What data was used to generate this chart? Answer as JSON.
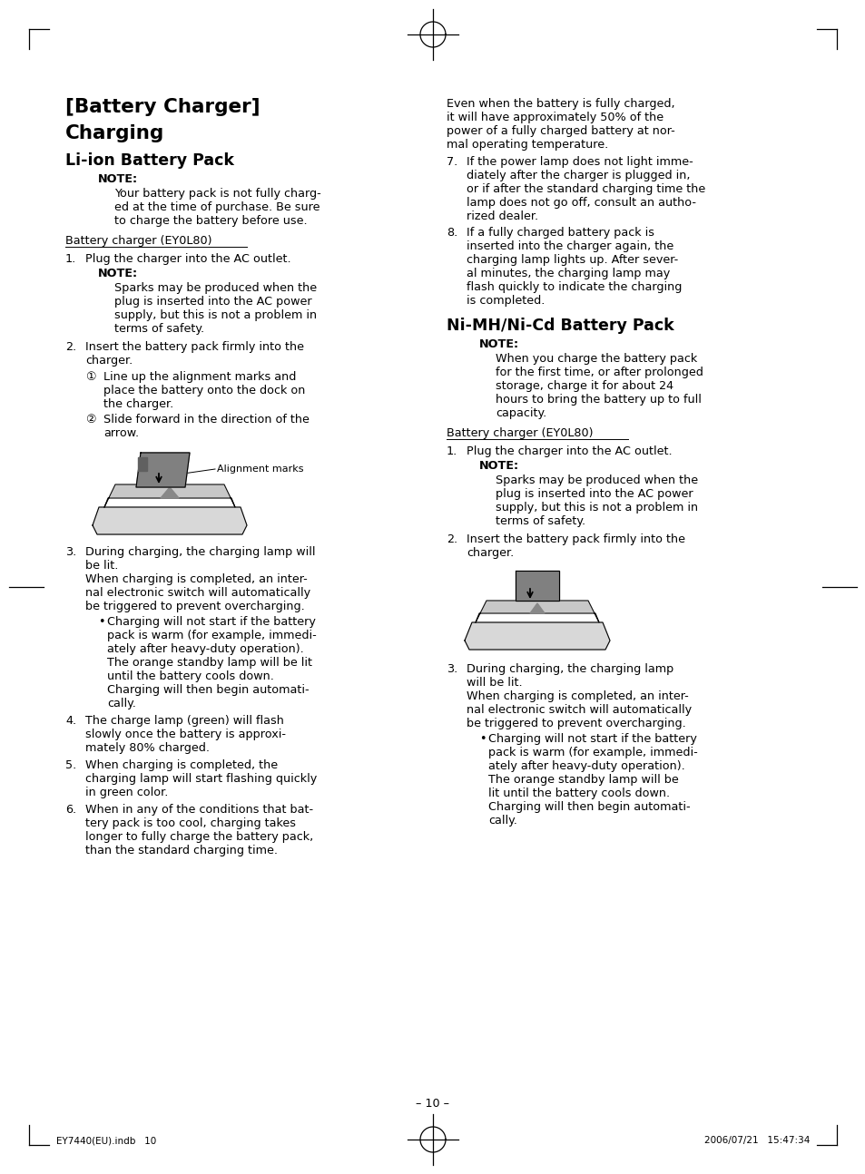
{
  "page_number": "– 10 –",
  "footer_left": "EY7440(EU).indb   10",
  "footer_right": "2006/07/21   15:47:34",
  "background": "#ffffff",
  "left_col": {
    "title1": "[Battery Charger]",
    "title2": "Charging",
    "subtitle1": "Li-ion Battery Pack",
    "note_header1": "NOTE:",
    "note_body1": [
      "Your battery pack is not fully charg-",
      "ed at the time of purchase. Be sure",
      "to charge the battery before use."
    ],
    "underline_label1": "Battery charger (EY0L80)",
    "item1_num": "1.",
    "item1_text": "Plug the charger into the AC outlet.",
    "item1_note_hdr": "NOTE:",
    "item1_note": [
      "Sparks may be produced when the",
      "plug is inserted into the AC power",
      "supply, but this is not a problem in",
      "terms of safety."
    ],
    "item2_num": "2.",
    "item2_text": [
      "Insert the battery pack firmly into the",
      "charger."
    ],
    "item2_sub1_num": "①",
    "item2_sub1": [
      "Line up the alignment marks and",
      "place the battery onto the dock on",
      "the charger."
    ],
    "item2_sub2_num": "②",
    "item2_sub2": [
      "Slide forward in the direction of the",
      "arrow."
    ],
    "image_label": "Alignment marks",
    "item3_num": "3.",
    "item3_text": [
      "During charging, the charging lamp will",
      "be lit.",
      "When charging is completed, an inter-",
      "nal electronic switch will automatically",
      "be triggered to prevent overcharging."
    ],
    "item3_bullet": [
      "Charging will not start if the battery",
      "pack is warm (for example, immedi-",
      "ately after heavy-duty operation).",
      "The orange standby lamp will be lit",
      "until the battery cools down.",
      "Charging will then begin automati-",
      "cally."
    ],
    "item4_num": "4.",
    "item4_text": [
      "The charge lamp (green) will flash",
      "slowly once the battery is approxi-",
      "mately 80% charged."
    ],
    "item5_num": "5.",
    "item5_text": [
      "When charging is completed, the",
      "charging lamp will start flashing quickly",
      "in green color."
    ],
    "item6_num": "6.",
    "item6_text": [
      "When in any of the conditions that bat-",
      "tery pack is too cool, charging takes",
      "longer to fully charge the battery pack,",
      "than the standard charging time."
    ]
  },
  "right_col": {
    "intro": [
      "Even when the battery is fully charged,",
      "it will have approximately 50% of the",
      "power of a fully charged battery at nor-",
      "mal operating temperature."
    ],
    "item7_num": "7.",
    "item7_text": [
      "If the power lamp does not light imme-",
      "diately after the charger is plugged in,",
      "or if after the standard charging time the",
      "lamp does not go off, consult an autho-",
      "rized dealer."
    ],
    "item8_num": "8.",
    "item8_text": [
      "If a fully charged battery pack is",
      "inserted into the charger again, the",
      "charging lamp lights up. After sever-",
      "al minutes, the charging lamp may",
      "flash quickly to indicate the charging",
      "is completed."
    ],
    "subtitle2": "Ni-MH/Ni-Cd Battery Pack",
    "note_header2": "NOTE:",
    "note_body2": [
      "When you charge the battery pack",
      "for the first time, or after prolonged",
      "storage, charge it for about 24",
      "hours to bring the battery up to full",
      "capacity."
    ],
    "underline_label2": "Battery charger (EY0L80)",
    "r_item1_num": "1.",
    "r_item1_text": "Plug the charger into the AC outlet.",
    "r_item1_note_hdr": "NOTE:",
    "r_item1_note": [
      "Sparks may be produced when the",
      "plug is inserted into the AC power",
      "supply, but this is not a problem in",
      "terms of safety."
    ],
    "r_item2_num": "2.",
    "r_item2_text": [
      "Insert the battery pack firmly into the",
      "charger."
    ],
    "r_item3_num": "3.",
    "r_item3_text": [
      "During charging, the charging lamp",
      "will be lit.",
      "When charging is completed, an inter-",
      "nal electronic switch will automatically",
      "be triggered to prevent overcharging."
    ],
    "r_item3_bullet": [
      "Charging will not start if the battery",
      "pack is warm (for example, immedi-",
      "ately after heavy-duty operation).",
      "The orange standby lamp will be",
      "lit until the battery cools down.",
      "Charging will then begin automati-",
      "cally."
    ]
  }
}
